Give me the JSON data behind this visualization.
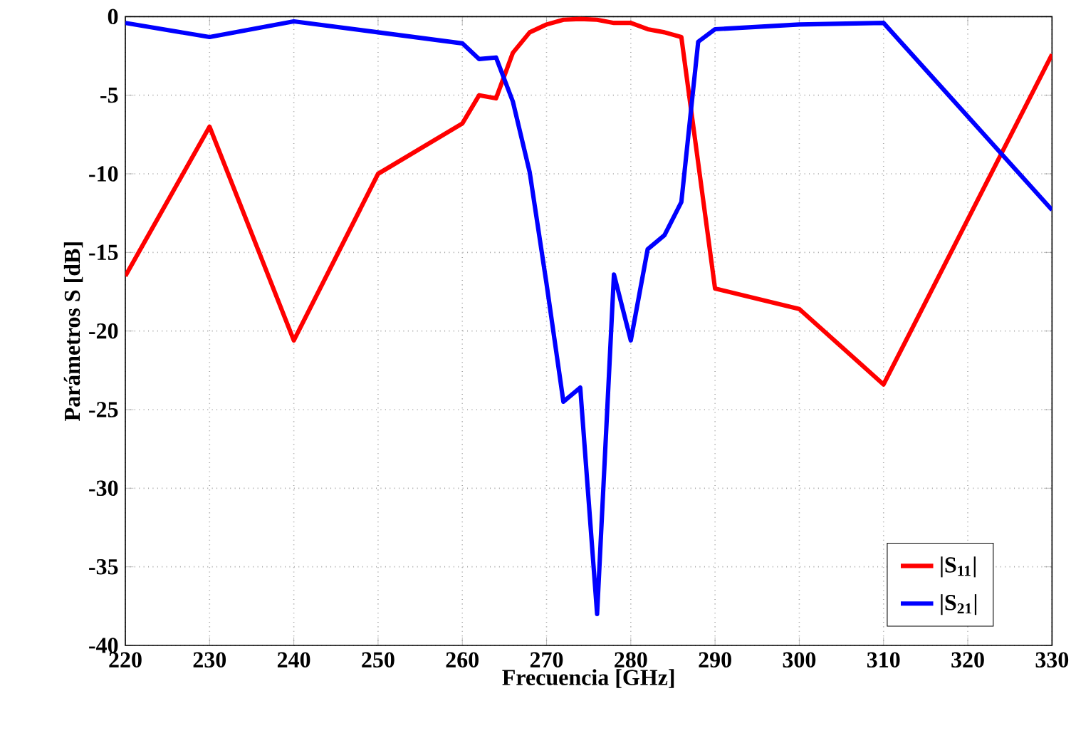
{
  "chart_data": {
    "type": "line",
    "xlabel": "Frecuencia [GHz]",
    "ylabel": "Parámetros S [dB]",
    "xlim": [
      220,
      330
    ],
    "ylim": [
      -40,
      0
    ],
    "xticks": [
      220,
      230,
      240,
      250,
      260,
      270,
      280,
      290,
      300,
      310,
      320,
      330
    ],
    "yticks": [
      -40,
      -35,
      -30,
      -25,
      -20,
      -15,
      -10,
      -5,
      0
    ],
    "grid": true,
    "legend": "bottom right",
    "marker": "none",
    "line_style": "solid",
    "series": [
      {
        "name": "|S$_{11}$|",
        "color": "#ff0000",
        "x": [
          220,
          230,
          240,
          250,
          260,
          262,
          264,
          266,
          268,
          270,
          272,
          274,
          276,
          278,
          280,
          282,
          284,
          286,
          290,
          300,
          310,
          330
        ],
        "values": [
          -16.5,
          -7,
          -20.6,
          -10,
          -6.8,
          -5,
          -5.2,
          -2.3,
          -1,
          -0.5,
          -0.2,
          -0.15,
          -0.2,
          -0.4,
          -0.4,
          -0.8,
          -1,
          -1.3,
          -17.3,
          -18.6,
          -23.4,
          -2.4
        ]
      },
      {
        "name": "|S$_{21}$|",
        "color": "#0000ff",
        "x": [
          220,
          230,
          240,
          250,
          260,
          262,
          264,
          266,
          268,
          270,
          272,
          274,
          276,
          278,
          280,
          282,
          284,
          286,
          288,
          290,
          300,
          310,
          330
        ],
        "values": [
          -0.4,
          -1.3,
          -0.3,
          -1,
          -1.7,
          -2.7,
          -2.6,
          -5.4,
          -9.9,
          -17,
          -24.5,
          -23.6,
          -38,
          -16.4,
          -20.6,
          -14.8,
          -13.9,
          -11.8,
          -1.6,
          -0.8,
          -0.5,
          -0.4,
          -12.3
        ]
      }
    ]
  }
}
